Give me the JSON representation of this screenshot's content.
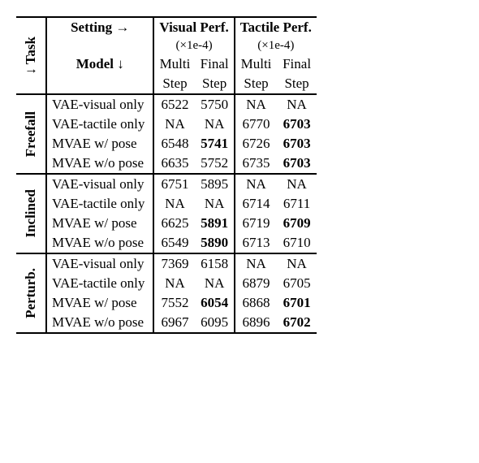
{
  "header": {
    "task_label": "↓ Task",
    "setting_label": "Setting →",
    "model_label": "Model ↓",
    "visual_perf": "Visual Perf.",
    "tactile_perf": "Tactile Perf.",
    "scale": "(×1e-4)",
    "multi": "Multi",
    "final": "Final",
    "step": "Step"
  },
  "tasks": {
    "freefall": {
      "label": "Freefall",
      "rows": [
        {
          "model": "VAE-visual only",
          "vm": "6522",
          "vf": "5750",
          "tm": "NA",
          "tf": "NA",
          "vm_bold": false,
          "vf_bold": false,
          "tm_bold": false,
          "tf_bold": false
        },
        {
          "model": "VAE-tactile only",
          "vm": "NA",
          "vf": "NA",
          "tm": "6770",
          "tf": "6703",
          "vm_bold": false,
          "vf_bold": false,
          "tm_bold": false,
          "tf_bold": true
        },
        {
          "model": "MVAE w/ pose",
          "vm": "6548",
          "vf": "5741",
          "tm": "6726",
          "tf": "6703",
          "vm_bold": false,
          "vf_bold": true,
          "tm_bold": false,
          "tf_bold": true
        },
        {
          "model": "MVAE w/o pose",
          "vm": "6635",
          "vf": "5752",
          "tm": "6735",
          "tf": "6703",
          "vm_bold": false,
          "vf_bold": false,
          "tm_bold": false,
          "tf_bold": true
        }
      ]
    },
    "inclined": {
      "label": "Inclined",
      "rows": [
        {
          "model": "VAE-visual only",
          "vm": "6751",
          "vf": "5895",
          "tm": "NA",
          "tf": "NA",
          "vm_bold": false,
          "vf_bold": false,
          "tm_bold": false,
          "tf_bold": false
        },
        {
          "model": "VAE-tactile only",
          "vm": "NA",
          "vf": "NA",
          "tm": "6714",
          "tf": "6711",
          "vm_bold": false,
          "vf_bold": false,
          "tm_bold": false,
          "tf_bold": false
        },
        {
          "model": "MVAE w/ pose",
          "vm": "6625",
          "vf": "5891",
          "tm": "6719",
          "tf": "6709",
          "vm_bold": false,
          "vf_bold": true,
          "tm_bold": false,
          "tf_bold": true
        },
        {
          "model": "MVAE w/o pose",
          "vm": "6549",
          "vf": "5890",
          "tm": "6713",
          "tf": "6710",
          "vm_bold": false,
          "vf_bold": true,
          "tm_bold": false,
          "tf_bold": false
        }
      ]
    },
    "perturb": {
      "label": "Perturb.",
      "rows": [
        {
          "model": "VAE-visual only",
          "vm": "7369",
          "vf": "6158",
          "tm": "NA",
          "tf": "NA",
          "vm_bold": false,
          "vf_bold": false,
          "tm_bold": false,
          "tf_bold": false
        },
        {
          "model": "VAE-tactile only",
          "vm": "NA",
          "vf": "NA",
          "tm": "6879",
          "tf": "6705",
          "vm_bold": false,
          "vf_bold": false,
          "tm_bold": false,
          "tf_bold": false
        },
        {
          "model": "MVAE w/ pose",
          "vm": "7552",
          "vf": "6054",
          "tm": "6868",
          "tf": "6701",
          "vm_bold": false,
          "vf_bold": true,
          "tm_bold": false,
          "tf_bold": true
        },
        {
          "model": "MVAE w/o pose",
          "vm": "6967",
          "vf": "6095",
          "tm": "6896",
          "tf": "6702",
          "vm_bold": false,
          "vf_bold": false,
          "tm_bold": false,
          "tf_bold": true
        }
      ]
    }
  }
}
